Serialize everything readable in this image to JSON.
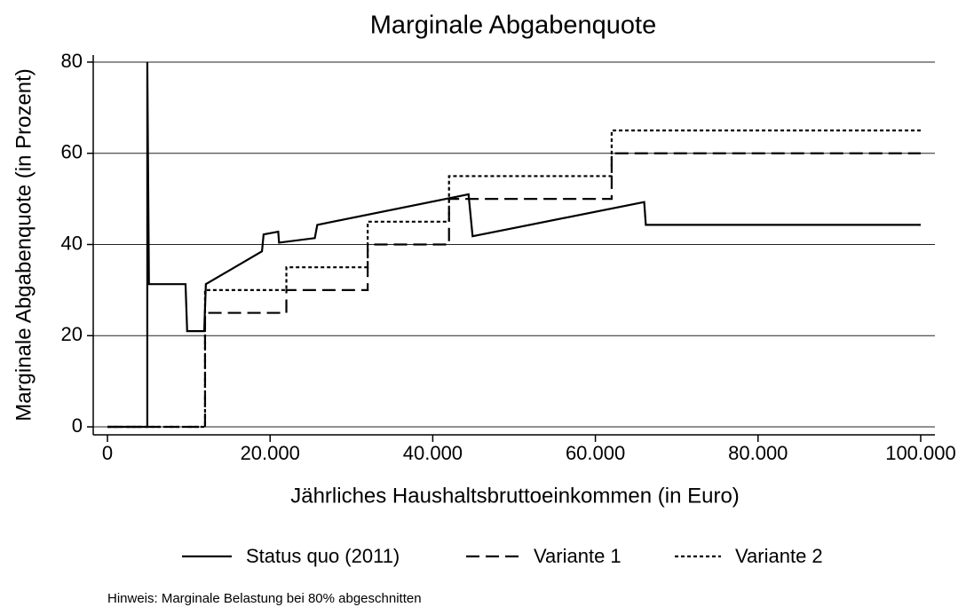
{
  "chart_data": {
    "type": "line",
    "title": "Marginale Abgabenquote",
    "xlabel": "Jährliches Haushaltsbruttoeinkommen (in Euro)",
    "ylabel": "Marginale Abgabenquote (in Prozent)",
    "note": "Hinweis: Marginale Belastung bei 80% abgeschnitten",
    "xlim": [
      -1750,
      101750
    ],
    "ylim": [
      -1.75,
      81.55
    ],
    "xticks": [
      0,
      {
        "value": 20000,
        "label": "20.000"
      },
      {
        "value": 40000,
        "label": "40.000"
      },
      {
        "value": 60000,
        "label": "60.000"
      },
      {
        "value": 80000,
        "label": "80.000"
      },
      {
        "value": 100000,
        "label": "100.000"
      }
    ],
    "yticks": [
      0,
      20,
      40,
      60,
      80
    ],
    "grid": true,
    "legend": "bottom",
    "series": [
      {
        "name": "Status quo (2011)",
        "color": "#000000",
        "dash": "solid",
        "x": [
          0,
          4900,
          4900,
          5100,
          9600,
          9800,
          11900,
          12100,
          19000,
          19200,
          21000,
          21100,
          25500,
          25800,
          44400,
          44900,
          66000,
          66200,
          100000
        ],
        "values": [
          0,
          0,
          80,
          31.3,
          31.3,
          21,
          21,
          31.3,
          38.5,
          42.2,
          42.8,
          40.4,
          41.4,
          44.3,
          51,
          41.8,
          49.3,
          44.3,
          44.3
        ]
      },
      {
        "name": "Variante 1",
        "color": "#000000",
        "dash": "long",
        "x": [
          0,
          12000,
          12000,
          22000,
          22000,
          32000,
          32000,
          42000,
          42000,
          62000,
          62000,
          100000
        ],
        "values": [
          0,
          0,
          25,
          25,
          30,
          30,
          40,
          40,
          50,
          50,
          60,
          60
        ]
      },
      {
        "name": "Variante 2",
        "color": "#000000",
        "dash": "short",
        "x": [
          0,
          12000,
          12000,
          22000,
          22000,
          32000,
          32000,
          42000,
          42000,
          62000,
          62000,
          100000
        ],
        "values": [
          0,
          0,
          30,
          30,
          35,
          35,
          45,
          45,
          55,
          55,
          65,
          65
        ]
      }
    ]
  }
}
